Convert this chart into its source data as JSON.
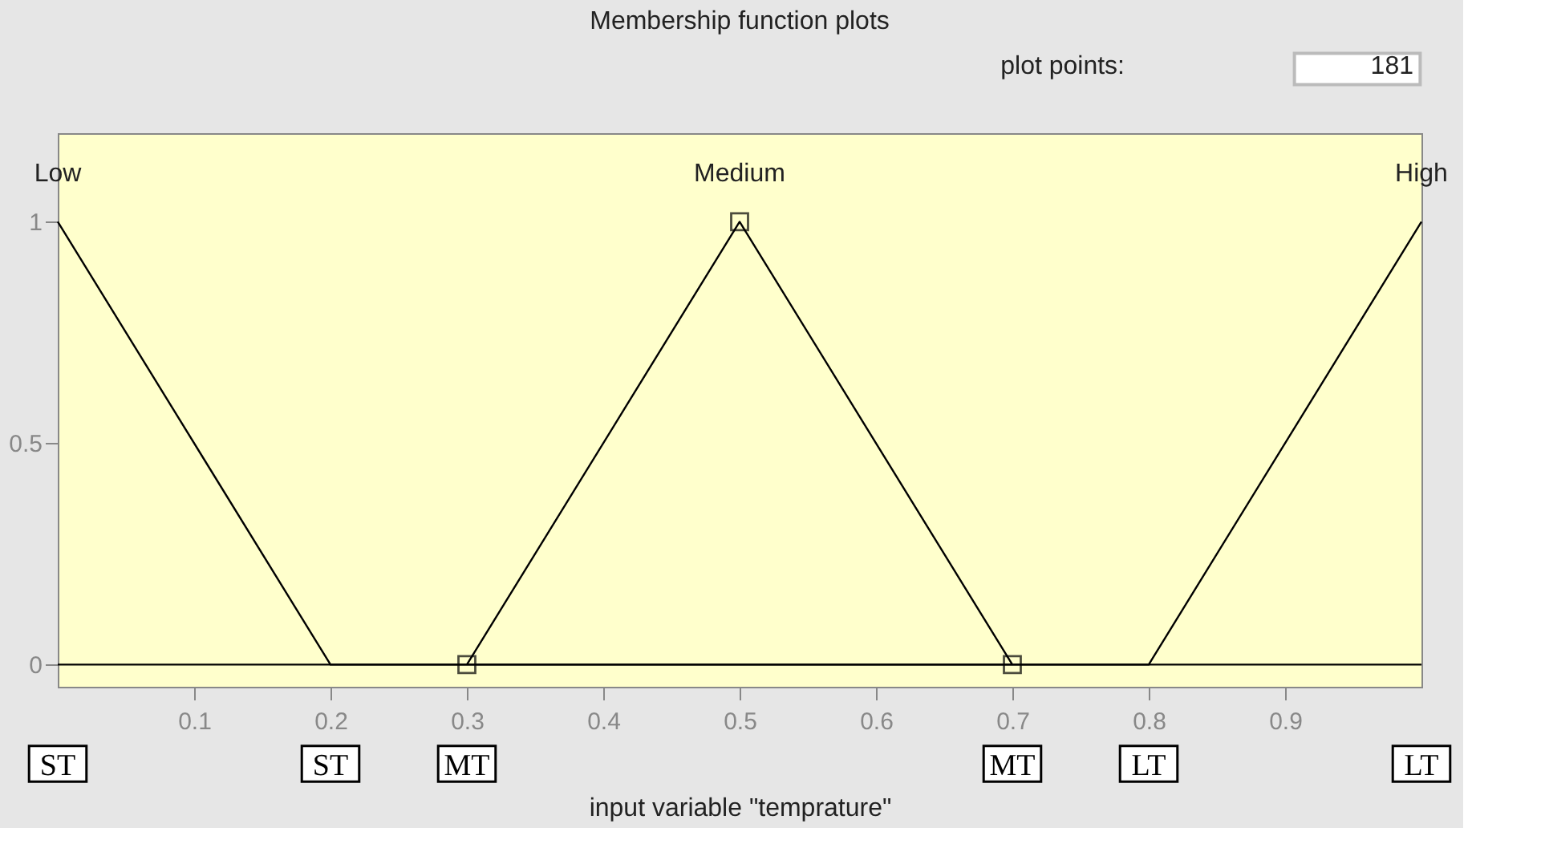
{
  "chart_data": {
    "type": "line",
    "title": "Membership function plots",
    "xlabel": "input variable \"temprature\"",
    "series": [
      {
        "name": "Low",
        "color": "#000000",
        "x": [
          0,
          0.2,
          1
        ],
        "values": [
          1,
          0,
          0
        ]
      },
      {
        "name": "Medium",
        "color": "#000000",
        "x": [
          0.3,
          0.5,
          0.7
        ],
        "values": [
          0,
          1,
          0
        ],
        "marker": "square"
      },
      {
        "name": "High",
        "color": "#000000",
        "x": [
          0,
          0.8,
          1
        ],
        "values": [
          0,
          0,
          1
        ]
      }
    ],
    "xlim": [
      0,
      1
    ],
    "xticks": [
      0.1,
      0.2,
      0.3,
      0.4,
      0.5,
      0.6,
      0.7,
      0.8,
      0.9
    ],
    "ylim": [
      -0.05,
      1.2
    ],
    "yticks": [
      0,
      0.5,
      1
    ],
    "grid": false,
    "legend": false,
    "annotations": [
      "ST",
      "ST",
      "MT",
      "MT",
      "LT",
      "LT",
      "plot points:",
      "181"
    ]
  }
}
